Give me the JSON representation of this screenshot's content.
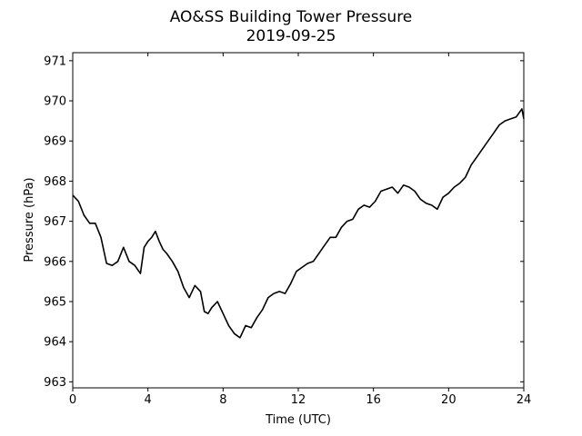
{
  "chart_data": {
    "type": "line",
    "title": "AO&SS Building Tower Pressure",
    "subtitle": "2019-09-25",
    "xlabel": "Time (UTC)",
    "ylabel": "Pressure (hPa)",
    "xlim": [
      0,
      24
    ],
    "ylim": [
      962.85,
      971.2
    ],
    "xticks": [
      0,
      4,
      8,
      12,
      16,
      20,
      24
    ],
    "yticks": [
      963,
      964,
      965,
      966,
      967,
      968,
      969,
      970,
      971
    ],
    "grid": false,
    "line_color": "#000000",
    "series": [
      {
        "x": [
          0,
          0.3,
          0.6,
          0.9,
          1.2,
          1.5,
          1.8,
          2.1,
          2.4,
          2.7,
          3.0,
          3.3,
          3.6,
          3.8,
          4.0,
          4.2,
          4.4,
          4.6,
          4.8,
          5.0,
          5.3,
          5.6,
          5.9,
          6.2,
          6.5,
          6.8,
          7.0,
          7.2,
          7.4,
          7.7,
          8.0,
          8.3,
          8.6,
          8.9,
          9.2,
          9.5,
          9.8,
          10.1,
          10.4,
          10.7,
          11.0,
          11.3,
          11.6,
          11.9,
          12.2,
          12.5,
          12.8,
          13.1,
          13.4,
          13.7,
          14.0,
          14.3,
          14.6,
          14.9,
          15.2,
          15.5,
          15.8,
          16.1,
          16.4,
          16.7,
          17.0,
          17.3,
          17.6,
          17.9,
          18.2,
          18.5,
          18.8,
          19.1,
          19.4,
          19.7,
          20.0,
          20.3,
          20.6,
          20.9,
          21.2,
          21.5,
          21.8,
          22.1,
          22.4,
          22.7,
          23.0,
          23.3,
          23.6,
          23.9,
          24.0
        ],
        "values": [
          967.65,
          967.5,
          967.15,
          966.95,
          966.95,
          966.6,
          965.95,
          965.9,
          966.0,
          966.35,
          966.0,
          965.9,
          965.7,
          966.35,
          966.5,
          966.6,
          966.75,
          966.5,
          966.3,
          966.2,
          966.0,
          965.75,
          965.35,
          965.1,
          965.4,
          965.25,
          964.75,
          964.7,
          964.85,
          965.0,
          964.7,
          964.4,
          964.2,
          964.1,
          964.4,
          964.35,
          964.6,
          964.8,
          965.1,
          965.2,
          965.25,
          965.2,
          965.45,
          965.75,
          965.85,
          965.95,
          966.0,
          966.2,
          966.4,
          966.6,
          966.6,
          966.85,
          967.0,
          967.05,
          967.3,
          967.4,
          967.35,
          967.5,
          967.75,
          967.8,
          967.85,
          967.7,
          967.9,
          967.85,
          967.75,
          967.55,
          967.45,
          967.4,
          967.3,
          967.6,
          967.7,
          967.85,
          967.95,
          968.1,
          968.4,
          968.6,
          968.8,
          969.0,
          969.2,
          969.4,
          969.5,
          969.55,
          969.6,
          969.8,
          969.55
        ]
      }
    ]
  }
}
